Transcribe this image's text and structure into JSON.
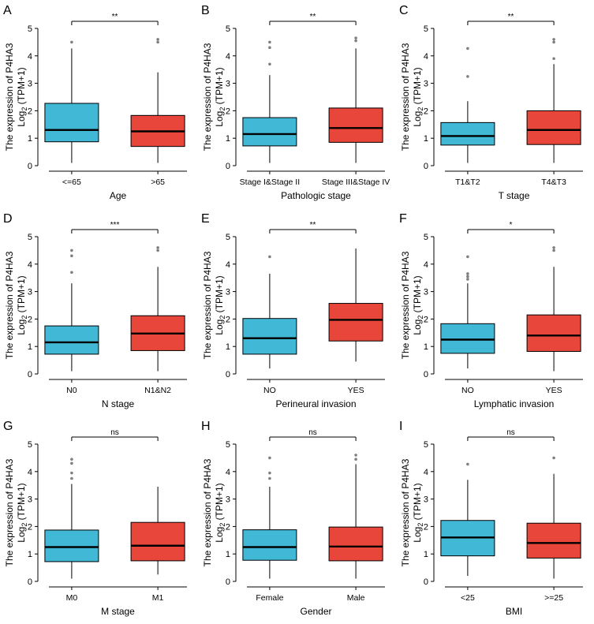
{
  "colors": {
    "group1": "#41B8D5",
    "group2": "#E8463A",
    "axis": "#000000",
    "outlier": "#7F7F7F"
  },
  "ylabel_main": "The expression of P4HA3",
  "ylabel_sub_prefix": "Log",
  "ylabel_sub_sub": "2",
  "ylabel_sub_suffix": " (TPM+1)",
  "chart_data": [
    {
      "letter": "A",
      "type": "boxplot",
      "xlabel": "Age",
      "categories": [
        "<=65",
        ">65"
      ],
      "significance": "**",
      "ylim": [
        0,
        5
      ],
      "yticks": [
        0,
        1,
        2,
        3,
        4,
        5
      ],
      "boxes": [
        {
          "q1": 0.87,
          "median": 1.3,
          "q3": 2.27,
          "whisker_low": 0.1,
          "whisker_high": 4.27,
          "outliers": [
            4.5
          ]
        },
        {
          "q1": 0.7,
          "median": 1.25,
          "q3": 1.83,
          "whisker_low": 0.1,
          "whisker_high": 3.4,
          "outliers": [
            4.5,
            4.6
          ]
        }
      ]
    },
    {
      "letter": "B",
      "type": "boxplot",
      "xlabel": "Pathologic stage",
      "categories": [
        "Stage I&Stage II",
        "Stage III&Stage IV"
      ],
      "significance": "**",
      "ylim": [
        0,
        5
      ],
      "yticks": [
        0,
        1,
        2,
        3,
        4,
        5
      ],
      "boxes": [
        {
          "q1": 0.72,
          "median": 1.15,
          "q3": 1.75,
          "whisker_low": 0.1,
          "whisker_high": 3.3,
          "outliers": [
            3.7,
            4.3,
            4.5
          ]
        },
        {
          "q1": 0.85,
          "median": 1.37,
          "q3": 2.1,
          "whisker_low": 0.1,
          "whisker_high": 4.27,
          "outliers": [
            4.55,
            4.65
          ]
        }
      ]
    },
    {
      "letter": "C",
      "type": "boxplot",
      "xlabel": "T stage",
      "categories": [
        "T1&T2",
        "T4&T3"
      ],
      "significance": "**",
      "ylim": [
        0,
        5
      ],
      "yticks": [
        0,
        1,
        2,
        3,
        4,
        5
      ],
      "boxes": [
        {
          "q1": 0.75,
          "median": 1.08,
          "q3": 1.57,
          "whisker_low": 0.1,
          "whisker_high": 2.35,
          "outliers": [
            3.25,
            4.27
          ]
        },
        {
          "q1": 0.77,
          "median": 1.3,
          "q3": 2.0,
          "whisker_low": 0.1,
          "whisker_high": 3.7,
          "outliers": [
            3.9,
            4.5,
            4.6
          ]
        }
      ]
    },
    {
      "letter": "D",
      "type": "boxplot",
      "xlabel": "N stage",
      "categories": [
        "N0",
        "N1&N2"
      ],
      "significance": "***",
      "ylim": [
        0,
        5
      ],
      "yticks": [
        0,
        1,
        2,
        3,
        4,
        5
      ],
      "boxes": [
        {
          "q1": 0.72,
          "median": 1.15,
          "q3": 1.75,
          "whisker_low": 0.1,
          "whisker_high": 3.3,
          "outliers": [
            3.7,
            4.3,
            4.5
          ]
        },
        {
          "q1": 0.85,
          "median": 1.47,
          "q3": 2.12,
          "whisker_low": 0.1,
          "whisker_high": 3.9,
          "outliers": [
            4.5,
            4.6
          ]
        }
      ]
    },
    {
      "letter": "E",
      "type": "boxplot",
      "xlabel": "Perineural invasion",
      "categories": [
        "NO",
        "YES"
      ],
      "significance": "**",
      "ylim": [
        0,
        5
      ],
      "yticks": [
        0,
        1,
        2,
        3,
        4,
        5
      ],
      "boxes": [
        {
          "q1": 0.72,
          "median": 1.3,
          "q3": 2.02,
          "whisker_low": 0.2,
          "whisker_high": 3.65,
          "outliers": [
            4.27
          ]
        },
        {
          "q1": 1.2,
          "median": 1.97,
          "q3": 2.57,
          "whisker_low": 0.45,
          "whisker_high": 4.57,
          "outliers": []
        }
      ]
    },
    {
      "letter": "F",
      "type": "boxplot",
      "xlabel": "Lymphatic invasion",
      "categories": [
        "NO",
        "YES"
      ],
      "significance": "*",
      "ylim": [
        0,
        5
      ],
      "yticks": [
        0,
        1,
        2,
        3,
        4,
        5
      ],
      "boxes": [
        {
          "q1": 0.75,
          "median": 1.25,
          "q3": 1.83,
          "whisker_low": 0.2,
          "whisker_high": 3.3,
          "outliers": [
            3.45,
            3.55,
            3.65,
            4.27
          ]
        },
        {
          "q1": 0.82,
          "median": 1.4,
          "q3": 2.15,
          "whisker_low": 0.1,
          "whisker_high": 3.9,
          "outliers": [
            4.5,
            4.6
          ]
        }
      ]
    },
    {
      "letter": "G",
      "type": "boxplot",
      "xlabel": "M stage",
      "categories": [
        "M0",
        "M1"
      ],
      "significance": "ns",
      "ylim": [
        0,
        5
      ],
      "yticks": [
        0,
        1,
        2,
        3,
        4,
        5
      ],
      "boxes": [
        {
          "q1": 0.72,
          "median": 1.25,
          "q3": 1.87,
          "whisker_low": 0.1,
          "whisker_high": 3.55,
          "outliers": [
            3.75,
            3.95,
            4.3,
            4.45
          ]
        },
        {
          "q1": 0.75,
          "median": 1.3,
          "q3": 2.15,
          "whisker_low": 0.25,
          "whisker_high": 3.45,
          "outliers": []
        }
      ]
    },
    {
      "letter": "H",
      "type": "boxplot",
      "xlabel": "Gender",
      "categories": [
        "Female",
        "Male"
      ],
      "significance": "ns",
      "ylim": [
        0,
        5
      ],
      "yticks": [
        0,
        1,
        2,
        3,
        4,
        5
      ],
      "boxes": [
        {
          "q1": 0.77,
          "median": 1.25,
          "q3": 1.88,
          "whisker_low": 0.1,
          "whisker_high": 3.45,
          "outliers": [
            3.75,
            3.95,
            4.5
          ]
        },
        {
          "q1": 0.75,
          "median": 1.27,
          "q3": 1.98,
          "whisker_low": 0.1,
          "whisker_high": 4.27,
          "outliers": [
            4.45,
            4.6
          ]
        }
      ]
    },
    {
      "letter": "I",
      "type": "boxplot",
      "xlabel": "BMI",
      "categories": [
        "<25",
        ">=25"
      ],
      "significance": "ns",
      "ylim": [
        0,
        5
      ],
      "yticks": [
        0,
        1,
        2,
        3,
        4,
        5
      ],
      "boxes": [
        {
          "q1": 0.93,
          "median": 1.6,
          "q3": 2.22,
          "whisker_low": 0.2,
          "whisker_high": 3.7,
          "outliers": [
            4.27
          ]
        },
        {
          "q1": 0.85,
          "median": 1.4,
          "q3": 2.12,
          "whisker_low": 0.1,
          "whisker_high": 3.92,
          "outliers": [
            4.5
          ]
        }
      ]
    }
  ]
}
